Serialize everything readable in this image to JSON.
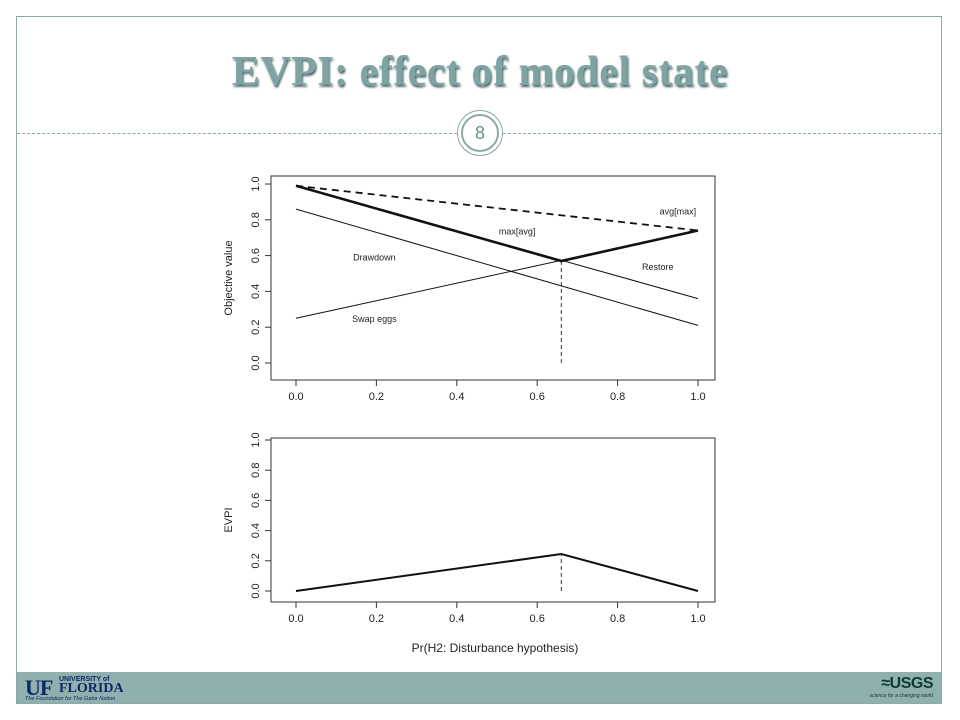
{
  "slide": {
    "title": "EVPI: effect of model state",
    "page_number": "8"
  },
  "footer": {
    "left_logo": {
      "mark": "UF",
      "top": "UNIVERSITY of",
      "name": "FLORIDA",
      "tagline": "The Foundation for The Gator Nation"
    },
    "right_logo": {
      "mark": "≈USGS",
      "tagline": "science for a changing world"
    }
  },
  "chart_data": [
    {
      "type": "line",
      "xlabel": "",
      "ylabel": "Objective value",
      "xlim": [
        0,
        1
      ],
      "ylim": [
        0,
        1
      ],
      "xticks": [
        "0.0",
        "0.2",
        "0.4",
        "0.6",
        "0.8",
        "1.0"
      ],
      "yticks": [
        "0.0",
        "0.2",
        "0.4",
        "0.6",
        "0.8",
        "1.0"
      ],
      "series": [
        {
          "name": "Drawdown",
          "x": [
            0,
            1
          ],
          "y": [
            0.86,
            0.21
          ]
        },
        {
          "name": "Restore",
          "x": [
            0,
            1
          ],
          "y": [
            0.99,
            0.36
          ]
        },
        {
          "name": "Swap eggs",
          "x": [
            0,
            1
          ],
          "y": [
            0.25,
            0.74
          ]
        },
        {
          "name": "max[avg]",
          "x": [
            0,
            0.66,
            1
          ],
          "y": [
            0.99,
            0.57,
            0.74
          ]
        },
        {
          "name": "avg[max]",
          "x": [
            0,
            1
          ],
          "y": [
            0.99,
            0.74
          ]
        }
      ],
      "vline": {
        "x": 0.66,
        "y_from": 0,
        "y_to": 0.57
      },
      "annotations": [
        {
          "text": "avg[max]",
          "x": 0.95,
          "y": 0.845
        },
        {
          "text": "max[avg]",
          "x": 0.55,
          "y": 0.735
        },
        {
          "text": "Drawdown",
          "x": 0.195,
          "y": 0.59
        },
        {
          "text": "Restore",
          "x": 0.9,
          "y": 0.535
        },
        {
          "text": "Swap eggs",
          "x": 0.195,
          "y": 0.245
        }
      ]
    },
    {
      "type": "line",
      "xlabel": "Pr(H2: Disturbance hypothesis)",
      "ylabel": "EVPI",
      "xlim": [
        0,
        1
      ],
      "ylim": [
        0,
        1
      ],
      "xticks": [
        "0.0",
        "0.2",
        "0.4",
        "0.6",
        "0.8",
        "1.0"
      ],
      "yticks": [
        "0.0",
        "0.2",
        "0.4",
        "0.6",
        "0.8",
        "1.0"
      ],
      "series": [
        {
          "x": [
            0,
            0.66,
            1
          ],
          "y": [
            0.0,
            0.245,
            0.0
          ]
        }
      ],
      "vline": {
        "x": 0.66,
        "y_from": 0,
        "y_to": 0.245
      }
    }
  ]
}
